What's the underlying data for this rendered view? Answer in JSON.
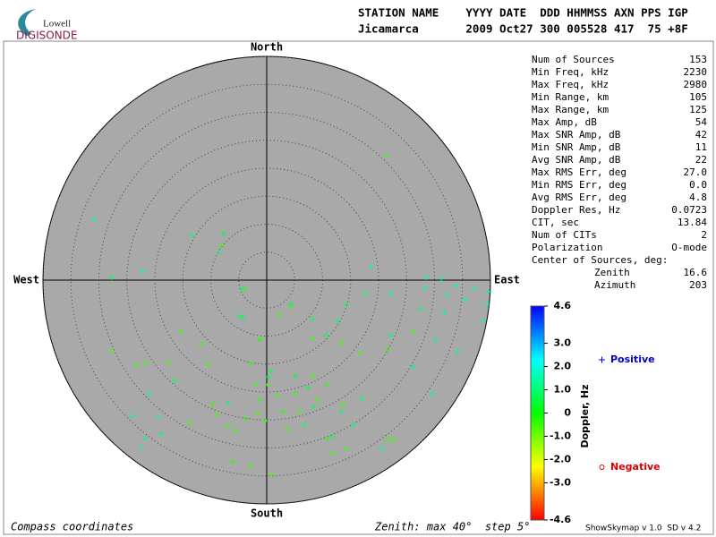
{
  "logo": {
    "top": "Lowell",
    "bottom": "DIGISONDE"
  },
  "header": {
    "line1": "STATION NAME    YYYY DATE  DDD HHMMSS AXN PPS IGP",
    "line2": "Jicamarca       2009 Oct27 300 005528 417  75 +8F"
  },
  "stats": [
    {
      "label": "Num of Sources",
      "value": "153"
    },
    {
      "label": "Min Freq, kHz",
      "value": "2230"
    },
    {
      "label": "Max Freq, kHz",
      "value": "2980"
    },
    {
      "label": "Min Range, km",
      "value": "105"
    },
    {
      "label": "Max Range, km",
      "value": "125"
    },
    {
      "label": "Max Amp, dB",
      "value": "54"
    },
    {
      "label": "Max SNR Amp, dB",
      "value": "42"
    },
    {
      "label": "Min SNR Amp, dB",
      "value": "11"
    },
    {
      "label": "Avg SNR Amp, dB",
      "value": "22"
    },
    {
      "label": "Max RMS Err, deg",
      "value": "27.0"
    },
    {
      "label": "Min RMS Err, deg",
      "value": "0.0"
    },
    {
      "label": "Avg RMS Err, deg",
      "value": "4.8"
    },
    {
      "label": "Doppler Res, Hz",
      "value": "0.0723"
    },
    {
      "label": "CIT, sec",
      "value": "13.84"
    },
    {
      "label": "Num of CITs",
      "value": "2"
    },
    {
      "label": "Polarization",
      "value": "O-mode"
    }
  ],
  "center": {
    "label": "Center of Sources, deg:",
    "rows": [
      {
        "label": "Zenith",
        "value": "16.6"
      },
      {
        "label": "Azimuth",
        "value": "203"
      }
    ]
  },
  "footer": {
    "left": "Compass coordinates",
    "middle": "Zenith: max 40°  step 5°",
    "right": "ShowSkymap v 1.0  SD v 4.2"
  },
  "chart_data": {
    "type": "polar-scatter",
    "directions": {
      "north": "North",
      "south": "South",
      "east": "East",
      "west": "West"
    },
    "xlim": [
      -40,
      40
    ],
    "ylim": [
      -40,
      40
    ],
    "rticks": [
      5,
      10,
      15,
      20,
      25,
      30,
      35,
      40
    ],
    "colorbar": {
      "label": "Doppler, Hz",
      "lim": [
        -4.6,
        4.6
      ],
      "ticks": [
        4.6,
        {
          "value": 3,
          "label": "3.0"
        },
        {
          "value": 2,
          "label": "2.0"
        },
        {
          "value": 1,
          "label": "1.0"
        },
        0,
        {
          "value": -1,
          "label": "-1.0"
        },
        {
          "value": -2,
          "label": "-2.0"
        },
        {
          "value": -3,
          "label": "-3.0"
        },
        -4.6
      ]
    },
    "series": [
      {
        "name": "Positive",
        "marker": "plus",
        "color": "#0000cc",
        "x": [
          -30.9,
          -13.4,
          -7.7,
          -8.5,
          -22.2,
          -27.7,
          -4.5,
          -4.8,
          18.7,
          28.5,
          31.2,
          28.2,
          33.9,
          37.1,
          39.7,
          39.5,
          31.8,
          27.5,
          22.2,
          17.6,
          14.2,
          12.6,
          4.3,
          8.2,
          10.7,
          22.2,
          26.2,
          29.6,
          34.1,
          30.2,
          0.3,
          5.1,
          7.4,
          8.3,
          13.3,
          17.0,
          20.6,
          -6.9,
          -16.5,
          -21.1,
          -24.0,
          -19.5,
          -21.8,
          -22.4,
          -18.9,
          -4.2,
          -1.3,
          0.8,
          6.7,
          11.7,
          15.5,
          38.7,
          32.3,
          35.5
        ],
        "y": [
          10.9,
          8.0,
          8.3,
          5.0,
          1.6,
          0.5,
          -1.6,
          -6.4,
          2.4,
          0.5,
          0.2,
          -1.4,
          -1.0,
          -1.4,
          -2.1,
          -4.3,
          -5.9,
          -5.1,
          -2.4,
          -2.4,
          -4.3,
          -7.2,
          -4.3,
          -6.9,
          -9.9,
          -9.9,
          -15.5,
          -20.3,
          -12.8,
          -10.7,
          -17.3,
          -17.1,
          -19.2,
          -22.7,
          -23.5,
          -21.1,
          -30.2,
          -21.9,
          -17.9,
          -20.3,
          -24.3,
          -24.3,
          -28.3,
          -29.9,
          -27.5,
          -6.7,
          -10.7,
          -16.3,
          -25.9,
          -28.0,
          -25.9,
          -7.2,
          -2.7,
          -3.5
        ],
        "doppler": [
          1.3,
          1.1,
          0.6,
          1.0,
          1.2,
          1.1,
          1.0,
          0.8,
          1.2,
          1.3,
          1.4,
          1.2,
          1.3,
          1.5,
          1.4,
          1.3,
          1.2,
          1.1,
          1.2,
          1.0,
          0.9,
          1.1,
          0.8,
          0.9,
          1.0,
          1.1,
          1.2,
          1.3,
          1.1,
          1.2,
          0.7,
          0.6,
          0.8,
          0.9,
          1.0,
          1.1,
          1.2,
          0.9,
          1.0,
          1.2,
          1.3,
          1.2,
          1.1,
          1.2,
          1.0,
          0.8,
          0.6,
          0.7,
          0.9,
          1.0,
          1.1,
          1.4,
          1.3,
          1.3
        ]
      },
      {
        "name": "Negative",
        "marker": "circle",
        "color": "#dd0000",
        "x": [
          21.4,
          -8.0,
          -4.0,
          2.2,
          4.3,
          8.3,
          13.4,
          16.6,
          21.6,
          26.2,
          -27.7,
          -23.2,
          -21.6,
          -17.6,
          -15.4,
          -11.7,
          -10.4,
          -2.9,
          -1.0,
          -2.1,
          -1.3,
          -0.3,
          0.3,
          1.9,
          3.0,
          3.7,
          8.3,
          9.1,
          10.7,
          11.8,
          13.6,
          14.2,
          21.6,
          22.7,
          -5.6,
          -3.7,
          -9.6,
          -9.0,
          -13.8,
          -6.9,
          -6.1,
          -2.9,
          0.8,
          5.1,
          10.7,
          5.9,
          -1.6
        ],
        "y": [
          22.2,
          6.2,
          -1.6,
          -6.2,
          -4.8,
          -10.4,
          -11.2,
          -13.1,
          -12.3,
          -9.1,
          -12.5,
          -15.2,
          -14.7,
          -14.7,
          -9.1,
          -11.4,
          -15.0,
          -14.9,
          -10.4,
          -18.7,
          -21.4,
          -25.1,
          -18.7,
          -20.6,
          -23.5,
          -26.6,
          -17.1,
          -21.4,
          -28.5,
          -30.9,
          -22.2,
          -30.2,
          -28.5,
          -28.6,
          -27.0,
          -24.8,
          -22.2,
          -24.0,
          -25.6,
          -26.1,
          -32.5,
          -33.3,
          -34.7,
          -20.3,
          -18.7,
          -23.5,
          -23.8
        ],
        "doppler": [
          -0.5,
          -0.6,
          -0.4,
          -0.5,
          -0.4,
          -0.5,
          -0.6,
          -0.5,
          -0.4,
          -0.5,
          -0.6,
          -0.5,
          -0.4,
          -0.5,
          -0.6,
          -0.5,
          -0.4,
          -0.5,
          -0.6,
          -0.5,
          -0.4,
          -0.5,
          -0.6,
          -0.5,
          -0.4,
          -0.5,
          -0.6,
          -0.5,
          -0.4,
          -0.5,
          -0.6,
          -0.5,
          -0.4,
          -0.5,
          -0.6,
          -0.5,
          -0.4,
          -0.5,
          -0.6,
          -0.5,
          -0.4,
          -0.5,
          -0.6,
          -0.5,
          -0.4,
          -0.5,
          -0.6
        ]
      }
    ]
  }
}
